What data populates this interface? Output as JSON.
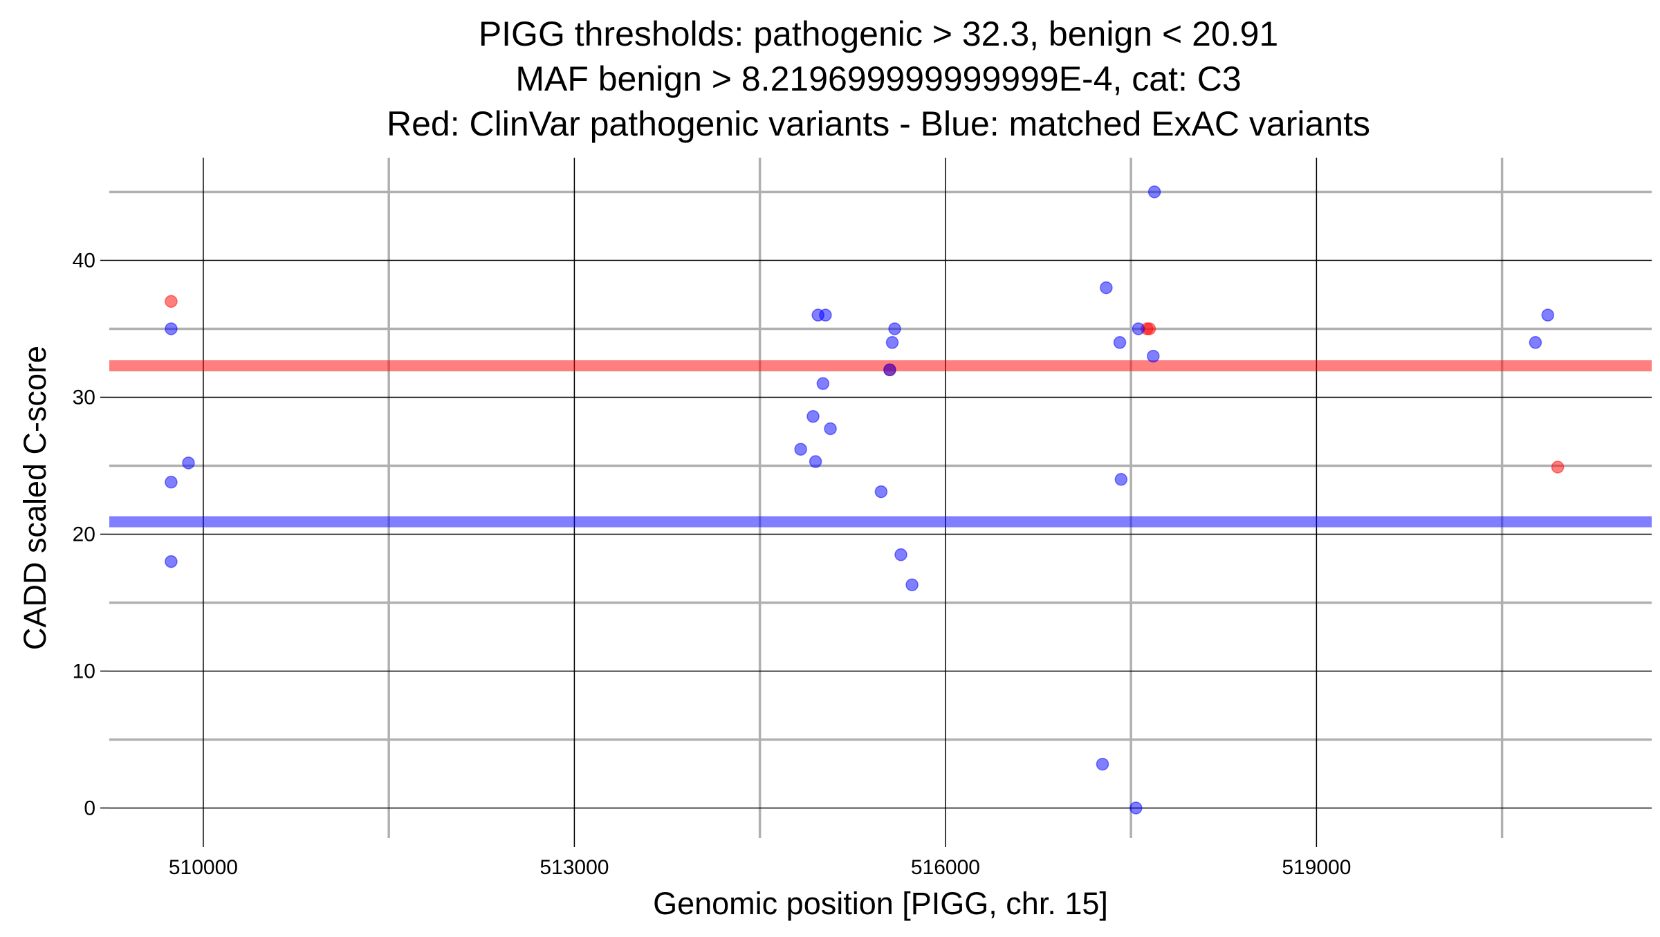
{
  "chart_data": {
    "type": "scatter",
    "title": [
      "PIGG thresholds: pathogenic > 32.3, benign < 20.91",
      "MAF benign > 8.219699999999999E-4, cat: C3",
      "Red: ClinVar pathogenic variants - Blue: matched ExAC variants"
    ],
    "xlabel": "Genomic position [PIGG, chr. 15]",
    "ylabel": "CADD scaled C-score",
    "xlim": [
      509240,
      521710
    ],
    "ylim": [
      -2.2,
      47.5
    ],
    "x_major_ticks": [
      510000,
      513000,
      516000,
      519000
    ],
    "x_tick_labels": [
      "510000",
      "513000",
      "516000",
      "519000"
    ],
    "x_minor_ticks": [
      511500,
      514500,
      517500,
      520500
    ],
    "y_major_ticks": [
      0,
      10,
      20,
      30,
      40
    ],
    "y_tick_labels": [
      "0",
      "10",
      "20",
      "30",
      "40"
    ],
    "y_minor_ticks": [
      5,
      15,
      25,
      35,
      45
    ],
    "grid": true,
    "thresholds": {
      "pathogenic": 32.3,
      "benign": 20.91
    },
    "colors": {
      "pathogenic": "#ff0000",
      "benign": "#0000ff",
      "major_grid": "#000000",
      "minor_grid": "#b0b0b0"
    },
    "series": [
      {
        "key": "pathogenic",
        "points": [
          {
            "x": 509740,
            "y": 37.0
          },
          {
            "x": 515550,
            "y": 32.0
          },
          {
            "x": 517630,
            "y": 35.0
          },
          {
            "x": 517650,
            "y": 35.0
          },
          {
            "x": 520950,
            "y": 24.9
          }
        ]
      },
      {
        "key": "benign",
        "points": [
          {
            "x": 509740,
            "y": 35.0
          },
          {
            "x": 509740,
            "y": 23.8
          },
          {
            "x": 509740,
            "y": 18.0
          },
          {
            "x": 509880,
            "y": 25.2
          },
          {
            "x": 514830,
            "y": 26.2
          },
          {
            "x": 514930,
            "y": 28.6
          },
          {
            "x": 514950,
            "y": 25.3
          },
          {
            "x": 514970,
            "y": 36.0
          },
          {
            "x": 515010,
            "y": 31.0
          },
          {
            "x": 515030,
            "y": 36.0
          },
          {
            "x": 515070,
            "y": 27.7
          },
          {
            "x": 515480,
            "y": 23.1
          },
          {
            "x": 515550,
            "y": 32.0
          },
          {
            "x": 515570,
            "y": 34.0
          },
          {
            "x": 515590,
            "y": 35.0
          },
          {
            "x": 515640,
            "y": 18.5
          },
          {
            "x": 515730,
            "y": 16.3
          },
          {
            "x": 517270,
            "y": 3.2
          },
          {
            "x": 517300,
            "y": 38.0
          },
          {
            "x": 517410,
            "y": 34.0
          },
          {
            "x": 517420,
            "y": 24.0
          },
          {
            "x": 517540,
            "y": 0.0
          },
          {
            "x": 517560,
            "y": 35.0
          },
          {
            "x": 517680,
            "y": 33.0
          },
          {
            "x": 517690,
            "y": 45.0
          },
          {
            "x": 520770,
            "y": 34.0
          },
          {
            "x": 520870,
            "y": 36.0
          }
        ]
      }
    ]
  }
}
